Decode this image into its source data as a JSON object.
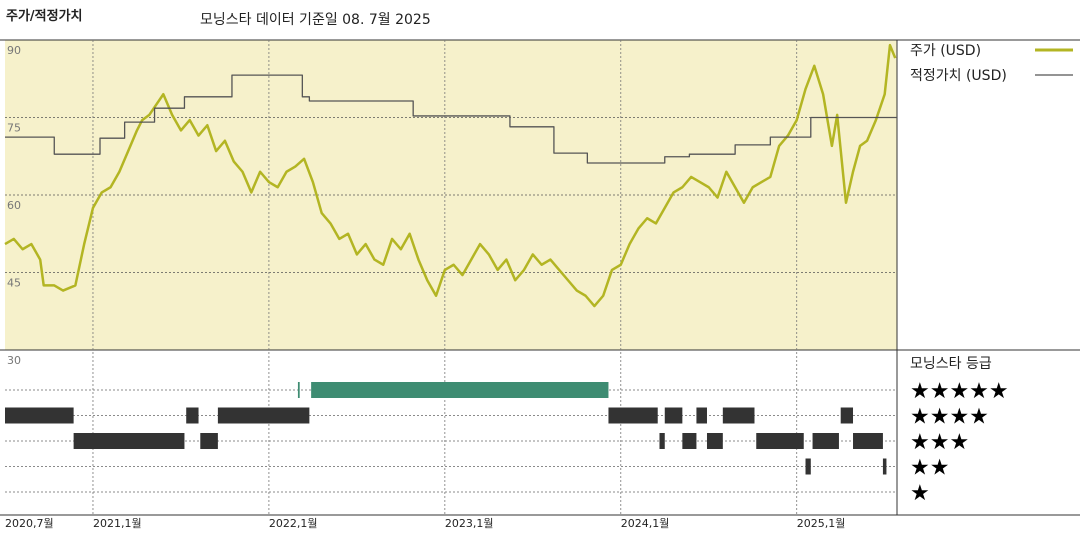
{
  "chart_data": {
    "type": "line",
    "title": "주가/적정가치",
    "subtitle": "모닝스타 데이터 기준일 08. 7월 2025",
    "xlim": [
      2020.5,
      2025.57
    ],
    "xticks": [
      {
        "value": 2020.5,
        "label": "2020,7월"
      },
      {
        "value": 2021,
        "label": "2021,1월"
      },
      {
        "value": 2022,
        "label": "2022,1월"
      },
      {
        "value": 2023,
        "label": "2023,1월"
      },
      {
        "value": 2024,
        "label": "2024,1월"
      },
      {
        "value": 2025,
        "label": "2025,1월"
      }
    ],
    "ylim": [
      30,
      90
    ],
    "yticks": [
      30,
      45,
      60,
      75,
      90
    ],
    "grid": true,
    "series": [
      {
        "name": "주가 (USD)",
        "color": "#b3b523",
        "step": false,
        "x": [
          2020.5,
          2020.55,
          2020.6,
          2020.65,
          2020.7,
          2020.72,
          2020.78,
          2020.83,
          2020.9,
          2020.95,
          2021.0,
          2021.05,
          2021.1,
          2021.15,
          2021.2,
          2021.25,
          2021.28,
          2021.32,
          2021.36,
          2021.4,
          2021.45,
          2021.5,
          2021.55,
          2021.6,
          2021.65,
          2021.7,
          2021.75,
          2021.8,
          2021.85,
          2021.9,
          2021.95,
          2022.0,
          2022.05,
          2022.1,
          2022.15,
          2022.2,
          2022.25,
          2022.3,
          2022.35,
          2022.4,
          2022.45,
          2022.5,
          2022.55,
          2022.6,
          2022.65,
          2022.7,
          2022.75,
          2022.8,
          2022.85,
          2022.9,
          2022.95,
          2023.0,
          2023.05,
          2023.1,
          2023.15,
          2023.2,
          2023.25,
          2023.3,
          2023.35,
          2023.4,
          2023.45,
          2023.5,
          2023.55,
          2023.6,
          2023.65,
          2023.7,
          2023.75,
          2023.8,
          2023.85,
          2023.9,
          2023.95,
          2024.0,
          2024.05,
          2024.1,
          2024.15,
          2024.2,
          2024.25,
          2024.3,
          2024.35,
          2024.4,
          2024.45,
          2024.5,
          2024.55,
          2024.6,
          2024.65,
          2024.7,
          2024.75,
          2024.8,
          2024.85,
          2024.9,
          2024.95,
          2025.0,
          2025.05,
          2025.1,
          2025.15,
          2025.2,
          2025.23,
          2025.28,
          2025.32,
          2025.36,
          2025.4,
          2025.45,
          2025.5,
          2025.53,
          2025.56
        ],
        "values": [
          50.5,
          51.5,
          49.5,
          50.5,
          47.5,
          42.5,
          42.5,
          41.5,
          42.5,
          50.5,
          57.5,
          60.5,
          61.5,
          64.5,
          68.5,
          72.5,
          74.5,
          75.5,
          77.5,
          79.5,
          75.5,
          72.5,
          74.5,
          71.5,
          73.5,
          68.5,
          70.5,
          66.5,
          64.5,
          60.5,
          64.5,
          62.5,
          61.5,
          64.5,
          65.5,
          67,
          62.5,
          56.5,
          54.5,
          51.5,
          52.5,
          48.5,
          50.5,
          47.5,
          46.5,
          51.5,
          49.5,
          52.5,
          47.5,
          43.5,
          40.5,
          45.5,
          46.5,
          44.5,
          47.5,
          50.5,
          48.5,
          45.5,
          47.5,
          43.5,
          45.5,
          48.5,
          46.5,
          47.5,
          45.5,
          43.5,
          41.5,
          40.5,
          38.5,
          40.5,
          45.5,
          46.5,
          50.5,
          53.5,
          55.5,
          54.5,
          57.5,
          60.5,
          61.5,
          63.5,
          62.5,
          61.5,
          59.5,
          64.5,
          61.5,
          58.5,
          61.5,
          62.5,
          63.5,
          69.5,
          71.5,
          74.5,
          80.5,
          85,
          79.5,
          69.5,
          75.5,
          58.5,
          64.5,
          69.5,
          70.5,
          74.5,
          79.5,
          89,
          86.5
        ]
      },
      {
        "name": "적정가치 (USD)",
        "color": "#555555",
        "step": true,
        "x": [
          2020.5,
          2020.78,
          2021.04,
          2021.18,
          2021.35,
          2021.52,
          2021.79,
          2022.19,
          2022.23,
          2022.82,
          2023.37,
          2023.62,
          2023.81,
          2024.25,
          2024.39,
          2024.65,
          2024.85,
          2025.08
        ],
        "values": [
          71.2,
          67.9,
          71,
          74.1,
          76.8,
          79,
          83.2,
          79,
          78.2,
          75.3,
          73.2,
          68.1,
          66.2,
          67.4,
          67.9,
          69.7,
          71.2,
          75
        ]
      }
    ],
    "rating": {
      "title": "모닝스타 등급",
      "labels": [
        "★★★★★",
        "★★★★",
        "★★★",
        "★★",
        "★"
      ],
      "levels": [
        5,
        4,
        3,
        2,
        1
      ],
      "top_color": "#3e8c72",
      "color": "#333333",
      "periods": [
        {
          "start": 2020.5,
          "end": 2020.89,
          "stars": 4
        },
        {
          "start": 2020.89,
          "end": 2021.52,
          "stars": 3
        },
        {
          "start": 2021.53,
          "end": 2021.6,
          "stars": 4
        },
        {
          "start": 2021.61,
          "end": 2021.71,
          "stars": 3
        },
        {
          "start": 2021.71,
          "end": 2022.23,
          "stars": 4
        },
        {
          "start": 2022.165,
          "end": 2022.175,
          "stars": 5
        },
        {
          "start": 2022.24,
          "end": 2023.93,
          "stars": 5
        },
        {
          "start": 2023.93,
          "end": 2024.21,
          "stars": 4
        },
        {
          "start": 2024.22,
          "end": 2024.25,
          "stars": 3
        },
        {
          "start": 2024.25,
          "end": 2024.35,
          "stars": 4
        },
        {
          "start": 2024.35,
          "end": 2024.43,
          "stars": 3
        },
        {
          "start": 2024.43,
          "end": 2024.49,
          "stars": 4
        },
        {
          "start": 2024.49,
          "end": 2024.58,
          "stars": 3
        },
        {
          "start": 2024.58,
          "end": 2024.76,
          "stars": 4
        },
        {
          "start": 2024.77,
          "end": 2025.04,
          "stars": 3
        },
        {
          "start": 2025.05,
          "end": 2025.08,
          "stars": 2
        },
        {
          "start": 2025.09,
          "end": 2025.24,
          "stars": 3
        },
        {
          "start": 2025.25,
          "end": 2025.32,
          "stars": 4
        },
        {
          "start": 2025.32,
          "end": 2025.49,
          "stars": 3
        },
        {
          "start": 2025.49,
          "end": 2025.51,
          "stars": 2
        }
      ]
    }
  }
}
